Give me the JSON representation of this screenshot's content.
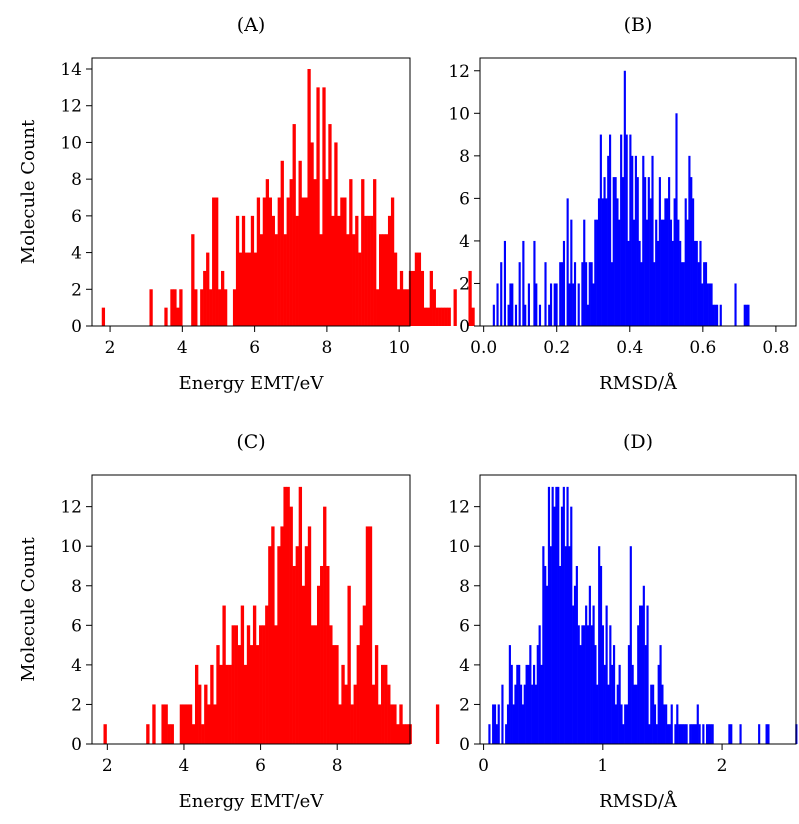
{
  "figure": {
    "shared_ylabel": "Molecule Count"
  },
  "chart_data": [
    {
      "id": "A",
      "type": "bar",
      "title": "(A)",
      "xlabel": "Energy EMT/eV",
      "ylabel": "Molecule Count",
      "xlim": [
        1.5,
        10.3
      ],
      "ylim": [
        0,
        14.6
      ],
      "xticks": [
        2,
        4,
        6,
        8,
        10
      ],
      "yticks": [
        0,
        2,
        4,
        6,
        8,
        10,
        12,
        14
      ],
      "bin_start": 1.77,
      "bin_width": 0.0825,
      "color": "#ff0000",
      "values": [
        1,
        0,
        0,
        0,
        0,
        0,
        0,
        0,
        0,
        0,
        0,
        0,
        0,
        0,
        0,
        0,
        2,
        0,
        0,
        0,
        0,
        1,
        0,
        2,
        2,
        1,
        2,
        0,
        0,
        0,
        5,
        2,
        0,
        2,
        3,
        4,
        2,
        7,
        7,
        2,
        3,
        2,
        0,
        0,
        2,
        6,
        4,
        6,
        4,
        4,
        6,
        4,
        7,
        5,
        7,
        8,
        7,
        6,
        5,
        7,
        9,
        5,
        7,
        8,
        11,
        6,
        9,
        7,
        7,
        14,
        10,
        8,
        13,
        5,
        13,
        8,
        11,
        6,
        10,
        6,
        7,
        7,
        5,
        8,
        5,
        6,
        4,
        8,
        6,
        6,
        6,
        8,
        2,
        5,
        5,
        5,
        6,
        7,
        4,
        2,
        3,
        2,
        2,
        3,
        3,
        4,
        4,
        3,
        1,
        1,
        3,
        2,
        1,
        1,
        1,
        1,
        1,
        0,
        2,
        0,
        0,
        0,
        0,
        3,
        1
      ]
    },
    {
      "id": "B",
      "type": "bar",
      "title": "(B)",
      "xlabel": "RMSD/Å",
      "ylabel": "",
      "xlim": [
        -0.01,
        0.855
      ],
      "ylim": [
        0,
        12.6
      ],
      "xticks": [
        "0.0",
        "0.2",
        "0.4",
        "0.6",
        "0.8"
      ],
      "ytick_values": [
        0,
        2,
        4,
        6,
        8,
        10,
        12
      ],
      "bin_start": 0.025,
      "bin_width": 0.00505,
      "color": "#0000ff",
      "values": [
        1,
        0,
        2,
        0,
        3,
        0,
        4,
        0,
        1,
        2,
        2,
        0,
        1,
        0,
        3,
        0,
        4,
        1,
        0,
        2,
        0,
        0,
        4,
        2,
        0,
        1,
        0,
        0,
        3,
        0,
        1,
        2,
        0,
        2,
        2,
        0,
        3,
        3,
        4,
        0,
        6,
        2,
        5,
        2,
        3,
        0,
        2,
        0,
        3,
        5,
        3,
        1,
        3,
        3,
        2,
        5,
        5,
        6,
        9,
        6,
        7,
        6,
        8,
        9,
        3,
        7,
        7,
        6,
        5,
        9,
        7,
        12,
        9,
        4,
        9,
        8,
        5,
        8,
        7,
        4,
        3,
        8,
        7,
        5,
        7,
        6,
        8,
        3,
        5,
        4,
        7,
        5,
        5,
        6,
        6,
        7,
        5,
        4,
        6,
        10,
        5,
        4,
        3,
        3,
        6,
        5,
        8,
        7,
        6,
        4,
        4,
        3,
        4,
        2,
        3,
        3,
        2,
        2,
        2,
        1,
        1,
        1,
        0,
        1,
        0,
        0,
        0,
        0,
        0,
        0,
        0,
        2,
        0,
        0,
        0,
        0,
        1,
        1,
        1
      ]
    },
    {
      "id": "C",
      "type": "bar",
      "title": "(C)",
      "xlabel": "Energy EMT/eV",
      "ylabel": "Molecule Count",
      "xlim": [
        1.6,
        9.9
      ],
      "ylim": [
        0,
        13.6
      ],
      "xticks": [
        2,
        4,
        6,
        8
      ],
      "yticks": [
        0,
        2,
        4,
        6,
        8,
        10,
        12
      ],
      "bin_start": 1.9,
      "bin_width": 0.0796,
      "color": "#ff0000",
      "values": [
        1,
        0,
        0,
        0,
        0,
        0,
        0,
        0,
        0,
        0,
        0,
        0,
        0,
        0,
        1,
        0,
        2,
        0,
        0,
        2,
        2,
        1,
        1,
        0,
        0,
        2,
        2,
        2,
        2,
        1,
        4,
        3,
        1,
        3,
        2,
        4,
        2,
        5,
        4,
        7,
        4,
        4,
        6,
        6,
        5,
        7,
        4,
        6,
        5,
        7,
        5,
        6,
        6,
        7,
        10,
        11,
        6,
        10,
        11,
        13,
        13,
        12,
        9,
        10,
        13,
        8,
        10,
        11,
        6,
        6,
        8,
        9,
        12,
        9,
        6,
        5,
        5,
        2,
        4,
        3,
        8,
        2,
        3,
        5,
        6,
        7,
        11,
        11,
        3,
        5,
        2,
        4,
        4,
        3,
        2,
        2,
        1,
        2,
        1,
        1,
        1,
        0,
        0,
        0,
        0,
        0,
        0,
        0,
        0,
        2,
        0,
        0,
        0,
        0,
        0,
        0,
        0,
        0,
        0,
        0,
        0,
        0,
        0,
        0,
        0,
        0
      ]
    },
    {
      "id": "D",
      "type": "bar",
      "title": "(D)",
      "xlabel": "RMSD/Å",
      "ylabel": "",
      "xlim": [
        -0.03,
        2.62
      ],
      "ylim": [
        0,
        13.6
      ],
      "xticks": [
        0,
        1,
        2
      ],
      "yticks": [
        0,
        2,
        4,
        6,
        8,
        10,
        12
      ],
      "bin_start": 0.04,
      "bin_width": 0.0156,
      "color": "#0000ff",
      "values": [
        1,
        0,
        2,
        2,
        1,
        2,
        0,
        3,
        0,
        1,
        2,
        5,
        4,
        2,
        3,
        4,
        4,
        3,
        2,
        3,
        4,
        4,
        5,
        3,
        4,
        3,
        5,
        6,
        4,
        10,
        9,
        8,
        13,
        10,
        13,
        12,
        13,
        13,
        9,
        12,
        13,
        10,
        13,
        10,
        12,
        7,
        8,
        9,
        6,
        5,
        6,
        6,
        7,
        6,
        8,
        6,
        7,
        5,
        3,
        10,
        9,
        6,
        4,
        7,
        3,
        6,
        4,
        5,
        2,
        3,
        4,
        2,
        1,
        2,
        2,
        5,
        10,
        4,
        3,
        3,
        6,
        7,
        7,
        8,
        5,
        7,
        1,
        3,
        3,
        2,
        1,
        4,
        5,
        3,
        2,
        2,
        1,
        1,
        2,
        0,
        1,
        2,
        1,
        1,
        1,
        1,
        1,
        0,
        1,
        1,
        1,
        1,
        2,
        1,
        0,
        1,
        0,
        1,
        1,
        1,
        1,
        0,
        0,
        0,
        0,
        0,
        0,
        0,
        0,
        1,
        1,
        0,
        0,
        0,
        0,
        1,
        0,
        0,
        0,
        0,
        0,
        0,
        0,
        0,
        0,
        1,
        0,
        0,
        0,
        1,
        1,
        0,
        0,
        0,
        0,
        0,
        0,
        0,
        0,
        0,
        0,
        0,
        0,
        0,
        0,
        1
      ]
    }
  ]
}
